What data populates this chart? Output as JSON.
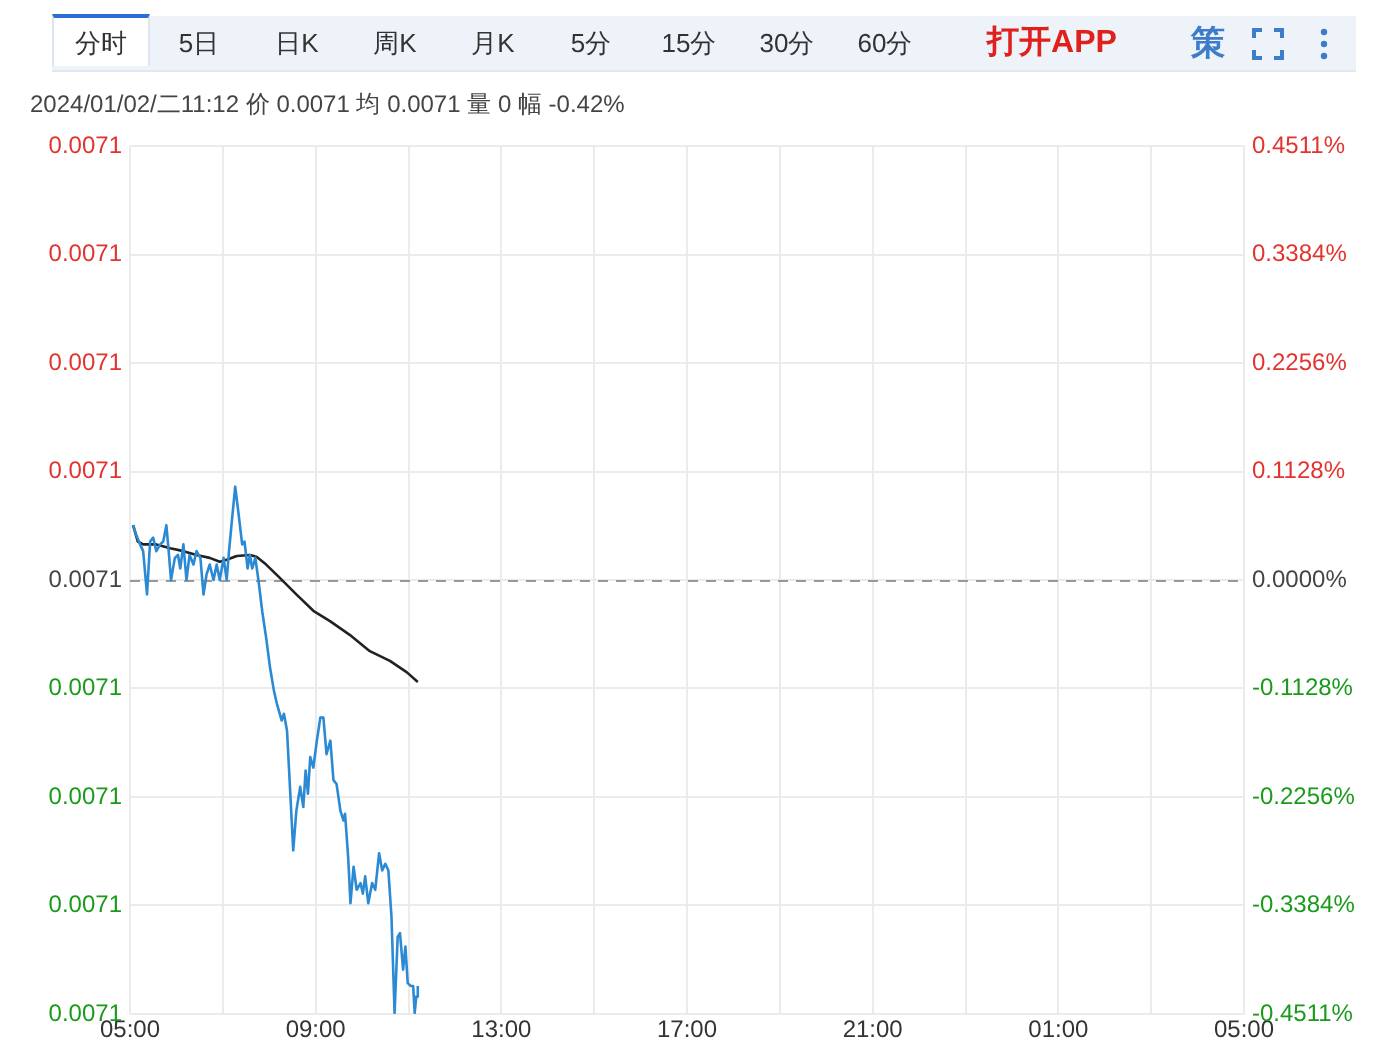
{
  "chart_data": {
    "type": "line",
    "subtitle": "2024/01/02/二11:12 价 0.0071 均 0.0071 量 0 幅 -0.42%",
    "annotations": [
      "分时",
      "5日",
      "日K",
      "周K",
      "月K",
      "5分",
      "15分",
      "30分",
      "60分",
      "打开APP",
      "策"
    ],
    "series": [
      {
        "color": "#2b8ad3",
        "axis": "y2",
        "x": [
          "2024-01-02T05:04",
          "2024-01-02T05:08",
          "2024-01-02T05:13",
          "2024-01-02T05:17",
          "2024-01-02T05:22",
          "2024-01-02T05:26",
          "2024-01-02T05:30",
          "2024-01-02T05:34",
          "2024-01-02T05:39",
          "2024-01-02T05:43",
          "2024-01-02T05:47",
          "2024-01-02T05:50",
          "2024-01-02T05:53",
          "2024-01-02T05:58",
          "2024-01-02T06:02",
          "2024-01-02T06:05",
          "2024-01-02T06:09",
          "2024-01-02T06:13",
          "2024-01-02T06:17",
          "2024-01-02T06:22",
          "2024-01-02T06:26",
          "2024-01-02T06:31",
          "2024-01-02T06:35",
          "2024-01-02T06:39",
          "2024-01-02T06:43",
          "2024-01-02T06:48",
          "2024-01-02T06:52",
          "2024-01-02T06:56",
          "2024-01-02T07:01",
          "2024-01-02T07:05",
          "2024-01-02T07:08",
          "2024-01-02T07:12",
          "2024-01-02T07:16",
          "2024-01-02T07:20",
          "2024-01-02T07:25",
          "2024-01-02T07:28",
          "2024-01-02T07:32",
          "2024-01-02T07:35",
          "2024-01-02T07:38",
          "2024-01-02T07:42",
          "2024-01-02T07:46",
          "2024-01-02T07:51",
          "2024-01-02T07:56",
          "2024-01-02T08:01",
          "2024-01-02T08:06",
          "2024-01-02T08:10",
          "2024-01-02T08:16",
          "2024-01-02T08:19",
          "2024-01-02T08:23",
          "2024-01-02T08:27",
          "2024-01-02T08:31",
          "2024-01-02T08:35",
          "2024-01-02T08:40",
          "2024-01-02T08:44",
          "2024-01-02T08:47",
          "2024-01-02T08:50",
          "2024-01-02T08:53",
          "2024-01-02T08:57",
          "2024-01-02T09:01",
          "2024-01-02T09:06",
          "2024-01-02T09:10",
          "2024-01-02T09:14",
          "2024-01-02T09:19",
          "2024-01-02T09:23",
          "2024-01-02T09:27",
          "2024-01-02T09:32",
          "2024-01-02T09:36",
          "2024-01-02T09:38",
          "2024-01-02T09:42",
          "2024-01-02T09:45",
          "2024-01-02T09:49",
          "2024-01-02T09:53",
          "2024-01-02T09:58",
          "2024-01-02T10:01",
          "2024-01-02T10:04",
          "2024-01-02T10:08",
          "2024-01-02T10:13",
          "2024-01-02T10:17",
          "2024-01-02T10:22",
          "2024-01-02T10:26",
          "2024-01-02T10:30",
          "2024-01-02T10:34",
          "2024-01-02T10:38",
          "2024-01-02T10:42",
          "2024-01-02T10:46",
          "2024-01-02T10:49",
          "2024-01-02T10:53",
          "2024-01-02T10:56",
          "2024-01-02T10:59",
          "2024-01-02T11:03",
          "2024-01-02T11:06",
          "2024-01-02T11:08",
          "2024-01-02T11:10",
          "2024-01-02T11:12"
        ],
        "values": [
          0.057,
          0.047,
          0.037,
          0.03,
          -0.015,
          0.04,
          0.044,
          0.03,
          0.037,
          0.04,
          0.057,
          0.03,
          0,
          0.023,
          0.026,
          0.012,
          0.037,
          0,
          0.026,
          0.016,
          0.03,
          0.023,
          -0.015,
          0.006,
          0.016,
          0,
          0.016,
          0,
          0.023,
          0,
          0.03,
          0.064,
          0.097,
          0.071,
          0.037,
          0.04,
          0.012,
          0.026,
          0.012,
          0.023,
          0,
          -0.033,
          -0.06,
          -0.091,
          -0.115,
          -0.129,
          -0.146,
          -0.139,
          -0.157,
          -0.219,
          -0.281,
          -0.24,
          -0.215,
          -0.236,
          -0.198,
          -0.222,
          -0.184,
          -0.195,
          -0.17,
          -0.143,
          -0.143,
          -0.181,
          -0.167,
          -0.208,
          -0.212,
          -0.24,
          -0.25,
          -0.243,
          -0.288,
          -0.336,
          -0.298,
          -0.322,
          -0.315,
          -0.326,
          -0.308,
          -0.336,
          -0.315,
          -0.322,
          -0.284,
          -0.302,
          -0.295,
          -0.302,
          -0.35,
          -0.45,
          -0.371,
          -0.367,
          -0.405,
          -0.381,
          -0.419,
          -0.422,
          -0.422,
          -0.45,
          -0.433,
          -0.422
        ]
      },
      {
        "color": "#222222",
        "axis": "y2",
        "x": [
          "2024-01-02T05:04",
          "2024-01-02T05:10",
          "2024-01-02T05:17",
          "2024-01-02T05:34",
          "2024-01-02T05:52",
          "2024-01-02T06:09",
          "2024-01-02T06:26",
          "2024-01-02T06:43",
          "2024-01-02T06:56",
          "2024-01-02T07:05",
          "2024-01-02T07:18",
          "2024-01-02T07:35",
          "2024-01-02T07:44",
          "2024-01-02T07:56",
          "2024-01-02T08:14",
          "2024-01-02T08:35",
          "2024-01-02T08:57",
          "2024-01-02T09:19",
          "2024-01-02T09:44",
          "2024-01-02T10:10",
          "2024-01-02T10:36",
          "2024-01-02T10:58",
          "2024-01-02T11:12"
        ],
        "values": [
          0.057,
          0.04,
          0.037,
          0.037,
          0.033,
          0.03,
          0.026,
          0.023,
          0.019,
          0.021,
          0.025,
          0.026,
          0.024,
          0.016,
          0.002,
          -0.015,
          -0.032,
          -0.043,
          -0.057,
          -0.074,
          -0.084,
          -0.096,
          -0.106
        ]
      }
    ],
    "xlim": [
      "2024-01-02T05:00",
      "2024-01-03T05:00"
    ],
    "xticks": [
      {
        "value": "2024-01-02T05:00",
        "label": "05:00"
      },
      {
        "value": "2024-01-02T07:00",
        "label": null
      },
      {
        "value": "2024-01-02T09:00",
        "label": "09:00"
      },
      {
        "value": "2024-01-02T11:00",
        "label": null
      },
      {
        "value": "2024-01-02T13:00",
        "label": "13:00"
      },
      {
        "value": "2024-01-02T15:00",
        "label": null
      },
      {
        "value": "2024-01-02T17:00",
        "label": "17:00"
      },
      {
        "value": "2024-01-02T19:00",
        "label": null
      },
      {
        "value": "2024-01-02T21:00",
        "label": "21:00"
      },
      {
        "value": "2024-01-02T23:00",
        "label": null
      },
      {
        "value": "2024-01-03T01:00",
        "label": "01:00"
      },
      {
        "value": "2024-01-03T03:00",
        "label": null
      },
      {
        "value": "2024-01-03T05:00",
        "label": "05:00"
      }
    ],
    "ylim": [
      0.007068,
      0.007132
    ],
    "yticks": [
      {
        "value": 0.007132,
        "label": "0.0071"
      },
      {
        "value": 0.007124,
        "label": "0.0071"
      },
      {
        "value": 0.007116,
        "label": "0.0071"
      },
      {
        "value": 0.007108,
        "label": "0.0071"
      },
      {
        "value": 0.0071,
        "label": "0.0071"
      },
      {
        "value": 0.007092,
        "label": "0.0071"
      },
      {
        "value": 0.007084,
        "label": "0.0071"
      },
      {
        "value": 0.007076,
        "label": "0.0071"
      },
      {
        "value": 0.007068,
        "label": "0.0071"
      }
    ],
    "y2lim": [
      -0.4511,
      0.4511
    ],
    "y2ticks": [
      {
        "value": 0.4511,
        "label": "0.4511%"
      },
      {
        "value": 0.3384,
        "label": "0.3384%"
      },
      {
        "value": 0.2256,
        "label": "0.2256%"
      },
      {
        "value": 0.1128,
        "label": "0.1128%"
      },
      {
        "value": 0,
        "label": "0.0000%"
      },
      {
        "value": -0.1128,
        "label": "-0.1128%"
      },
      {
        "value": -0.2256,
        "label": "-0.2256%"
      },
      {
        "value": -0.3384,
        "label": "-0.3384%"
      },
      {
        "value": -0.4511,
        "label": "-0.4511%"
      }
    ],
    "ref_lines": [
      {
        "axis": "y2",
        "value": 0,
        "color": "#999999",
        "line_style": "dashed"
      }
    ],
    "grid": true
  }
}
